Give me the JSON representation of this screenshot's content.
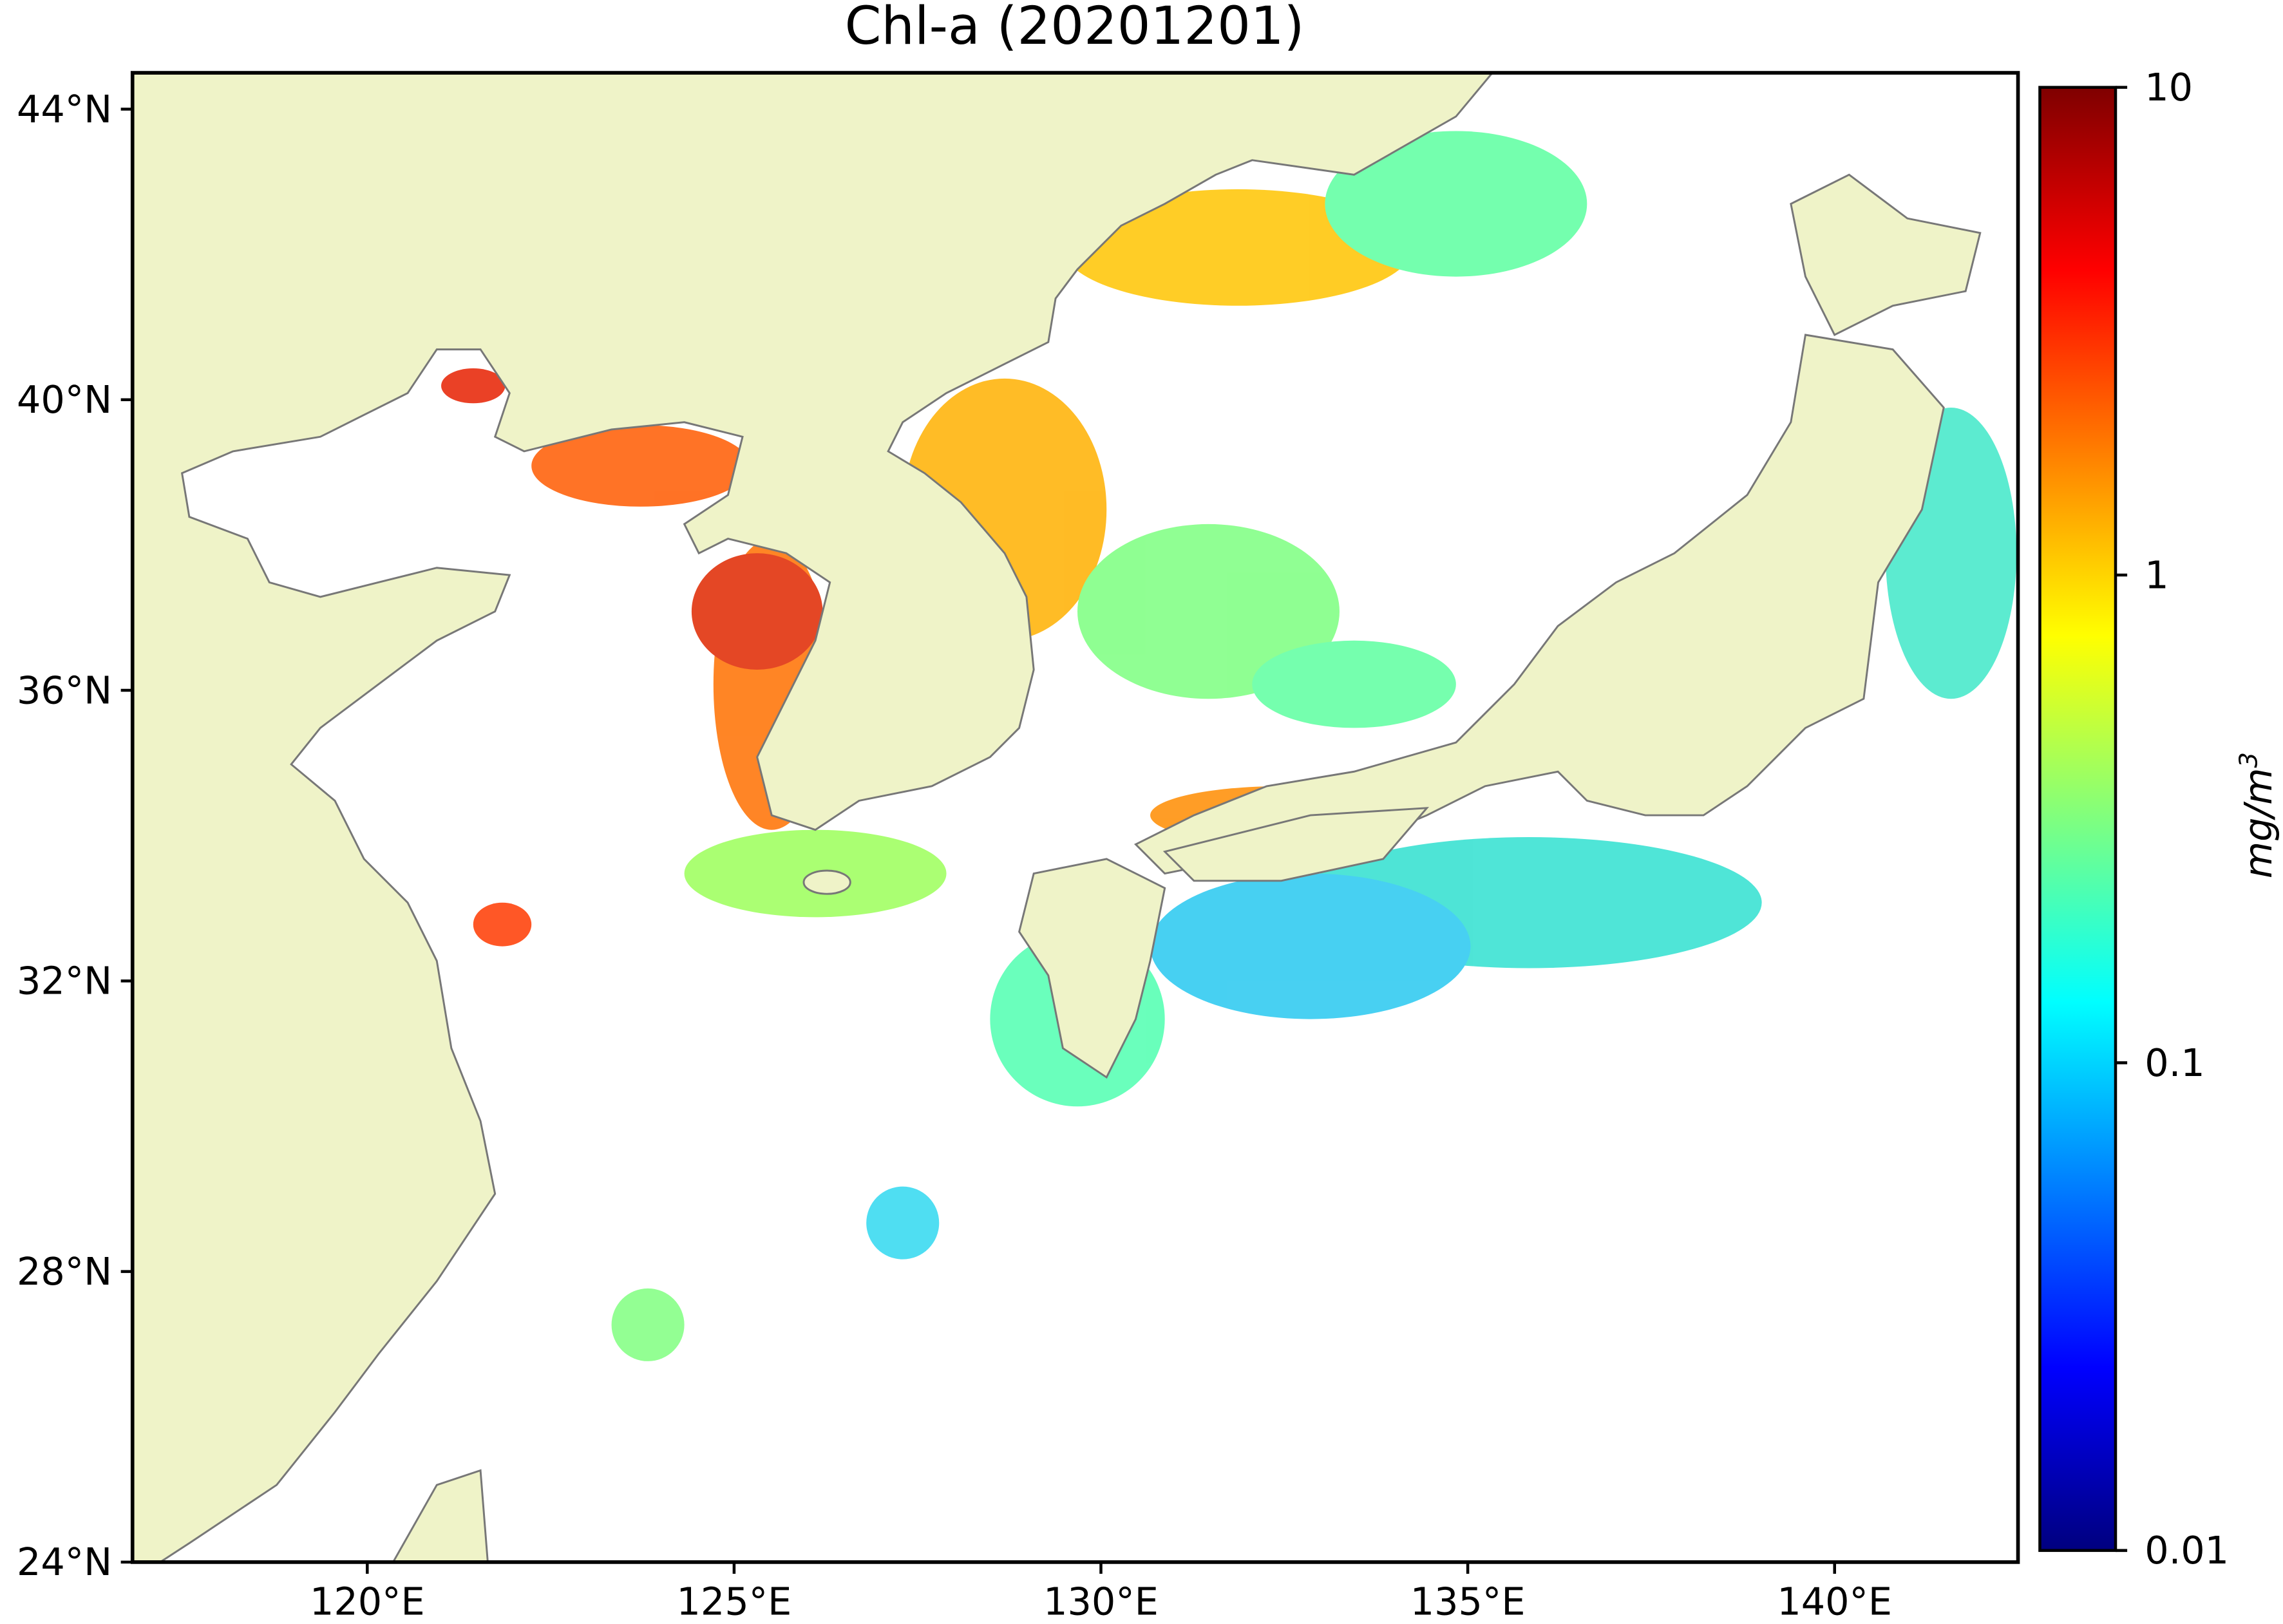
{
  "chart_data": {
    "type": "map",
    "title": "Chl-a (20201201)",
    "xlim": [
      116.8,
      142.5
    ],
    "ylim": [
      24,
      44.5
    ],
    "xticks": [
      {
        "value": 120,
        "label": "120°E"
      },
      {
        "value": 125,
        "label": "125°E"
      },
      {
        "value": 130,
        "label": "130°E"
      },
      {
        "value": 135,
        "label": "135°E"
      },
      {
        "value": 140,
        "label": "140°E"
      }
    ],
    "yticks": [
      {
        "value": 24,
        "label": "24°N"
      },
      {
        "value": 28,
        "label": "28°N"
      },
      {
        "value": 32,
        "label": "32°N"
      },
      {
        "value": 36,
        "label": "36°N"
      },
      {
        "value": 40,
        "label": "40°N"
      },
      {
        "value": 44,
        "label": "44°N"
      }
    ],
    "land_color": "#eff3c8",
    "coast_color": "#777777",
    "colorbar": {
      "scale": "log",
      "colormap": "jet",
      "lim": [
        0.01,
        10
      ],
      "ticks": [
        0.01,
        0.1,
        1,
        10
      ],
      "label": "mg/m",
      "label_exponent": "3"
    }
  }
}
